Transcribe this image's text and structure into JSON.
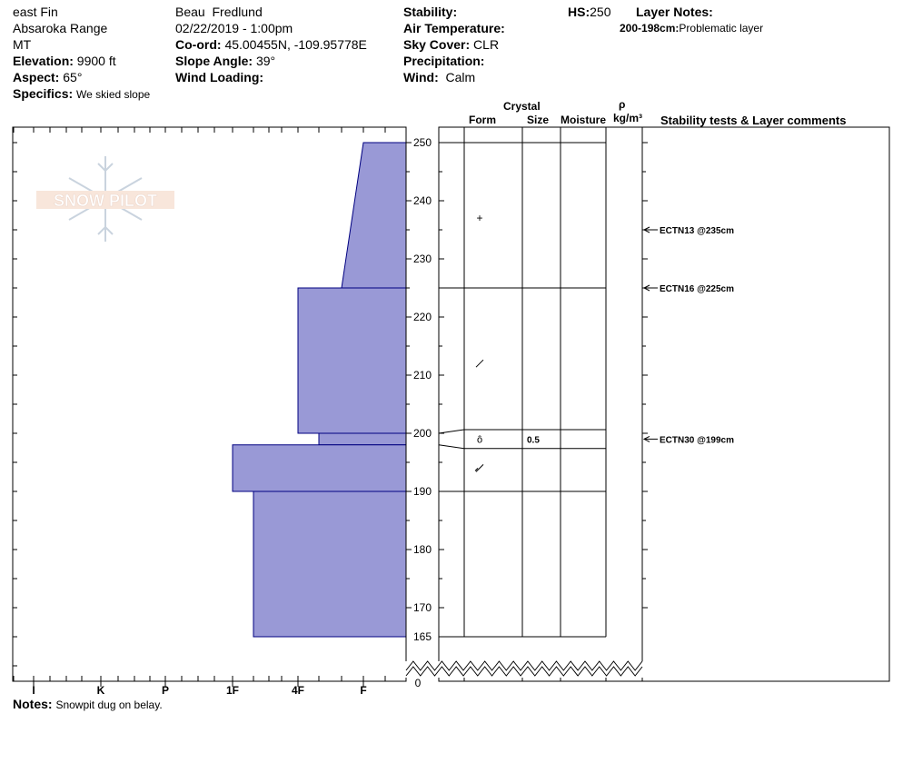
{
  "header": {
    "location": "east Fin",
    "range": "Absaroka Range",
    "state": "MT",
    "elevation_label": "Elevation:",
    "elevation": "9900 ft",
    "aspect_label": "Aspect:",
    "aspect": "65°",
    "specifics_label": "Specifics:",
    "specifics": "We skied slope",
    "observer": "Beau  Fredlund",
    "datetime": "02/22/2019 - 1:00pm",
    "coord_label": "Co-ord:",
    "coord": "45.00455N, -109.95778E",
    "slope_label": "Slope Angle:",
    "slope": "39°",
    "wind_loading_label": "Wind Loading:",
    "wind_loading": "",
    "stability_label": "Stability:",
    "stability": "",
    "air_temp_label": "Air Temperature:",
    "air_temp": "",
    "sky_label": "Sky Cover:",
    "sky": "CLR",
    "precip_label": "Precipitation:",
    "precip": "",
    "wind_label": "Wind:",
    "wind": "Calm",
    "hs_label": "HS:",
    "hs": "250",
    "layer_notes_label": "Layer Notes:",
    "layer_note_range": "200-198cm:",
    "layer_note_text": "Problematic layer"
  },
  "logo_text": "SNOW PILOT",
  "columns": {
    "crystal": "Crystal",
    "form": "Form",
    "size": "Size",
    "moisture": "Moisture",
    "rho": "ρ",
    "density_unit": "kg/m³",
    "comments": "Stability tests & Layer comments"
  },
  "notes_label": "Notes:",
  "notes": "Snowpit dug on belay.",
  "colors": {
    "layer_fill": "#9999d6",
    "layer_stroke": "#000080"
  },
  "chart_data": {
    "type": "bar",
    "depth_axis_ticks": [
      250,
      240,
      230,
      220,
      210,
      200,
      190,
      180,
      170,
      165
    ],
    "depth_axis_bottom": "0",
    "hardness_ticks": [
      "I",
      "K",
      "P",
      "1F",
      "4F",
      "F"
    ],
    "hardness_layers": [
      {
        "top": 250,
        "bottom": 225,
        "hardness_top": "F+",
        "hardness_bottom": "F-"
      },
      {
        "top": 225,
        "bottom": 200,
        "hardness": "4F"
      },
      {
        "top": 200,
        "bottom": 198,
        "hardness": "4F+"
      },
      {
        "top": 198,
        "bottom": 190,
        "hardness": "1F"
      },
      {
        "top": 190,
        "bottom": 165,
        "hardness": "1F+"
      }
    ],
    "layer_boundaries": [
      250,
      225,
      200,
      198,
      190,
      165
    ],
    "grain_forms": [
      {
        "depth": 237,
        "symbol": "+"
      },
      {
        "depth": 212,
        "symbol": "/"
      },
      {
        "depth": 199,
        "symbol": "ô",
        "size": "0.5"
      },
      {
        "depth": 194,
        "symbol": "/"
      }
    ],
    "stability_tests": [
      {
        "depth": 235,
        "text": "ECTN13 @235cm"
      },
      {
        "depth": 225,
        "text": "ECTN16 @225cm"
      },
      {
        "depth": 199,
        "text": "ECTN30 @199cm"
      }
    ]
  }
}
